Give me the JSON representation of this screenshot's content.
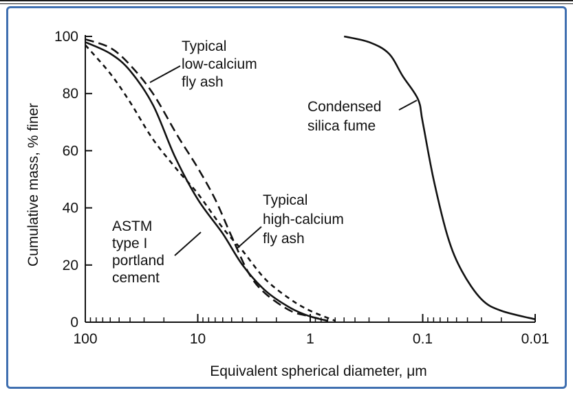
{
  "chart_data": {
    "type": "line",
    "xlabel": "Equivalent spherical diameter, μm",
    "ylabel": "Cumulative mass, % finer",
    "x_scale": "log",
    "x_reversed": true,
    "xlim": [
      100,
      0.01
    ],
    "ylim": [
      0,
      100
    ],
    "x_ticks": [
      {
        "value": 100,
        "label": "100"
      },
      {
        "value": 10,
        "label": "10"
      },
      {
        "value": 1,
        "label": "1"
      },
      {
        "value": 0.1,
        "label": "0.1"
      },
      {
        "value": 0.01,
        "label": "0.01"
      }
    ],
    "y_ticks": [
      {
        "value": 0,
        "label": "0"
      },
      {
        "value": 20,
        "label": "20"
      },
      {
        "value": 40,
        "label": "40"
      },
      {
        "value": 60,
        "label": "60"
      },
      {
        "value": 80,
        "label": "80"
      },
      {
        "value": 100,
        "label": "100"
      }
    ],
    "grid": false,
    "legend": "none (series labeled by annotations)",
    "series": [
      {
        "name": "Typical low-calcium fly ash",
        "style": "long-dash",
        "x": [
          100,
          60,
          40,
          25,
          15,
          10,
          7,
          5,
          3.5,
          2.5,
          1.5,
          1,
          0.7
        ],
        "y": [
          99,
          96,
          90,
          80,
          65,
          54,
          43,
          30,
          17,
          10,
          4,
          2,
          0.5
        ]
      },
      {
        "name": "ASTM type I portland cement",
        "style": "solid",
        "x": [
          100,
          60,
          40,
          25,
          16,
          10,
          6,
          4,
          2.5,
          1.5,
          1,
          0.7
        ],
        "y": [
          98,
          94,
          88,
          76,
          58,
          43,
          31,
          20,
          11,
          5,
          2,
          0.5
        ]
      },
      {
        "name": "Typical high-calcium fly ash",
        "style": "short-dash",
        "x": [
          100,
          60,
          40,
          25,
          15,
          10,
          6,
          4,
          2.5,
          1.5,
          1,
          0.6
        ],
        "y": [
          97,
          87,
          77,
          64,
          53,
          45,
          33,
          25,
          15,
          8,
          4,
          0.5
        ]
      },
      {
        "name": "Condensed silica fume",
        "style": "solid",
        "x": [
          0.5,
          0.3,
          0.2,
          0.15,
          0.11,
          0.1,
          0.08,
          0.06,
          0.045,
          0.03,
          0.02,
          0.01
        ],
        "y": [
          100,
          98,
          94,
          86,
          78,
          70,
          50,
          30,
          18,
          8,
          4,
          1
        ]
      }
    ],
    "annotations": [
      {
        "lines": [
          "Typical",
          "low-calcium",
          "fly ash"
        ]
      },
      {
        "lines": [
          "Condensed",
          "silica fume"
        ]
      },
      {
        "lines": [
          "Typical",
          "high-calcium",
          "fly ash"
        ]
      },
      {
        "lines": [
          "ASTM",
          "type I",
          "portland",
          "cement"
        ]
      }
    ]
  }
}
